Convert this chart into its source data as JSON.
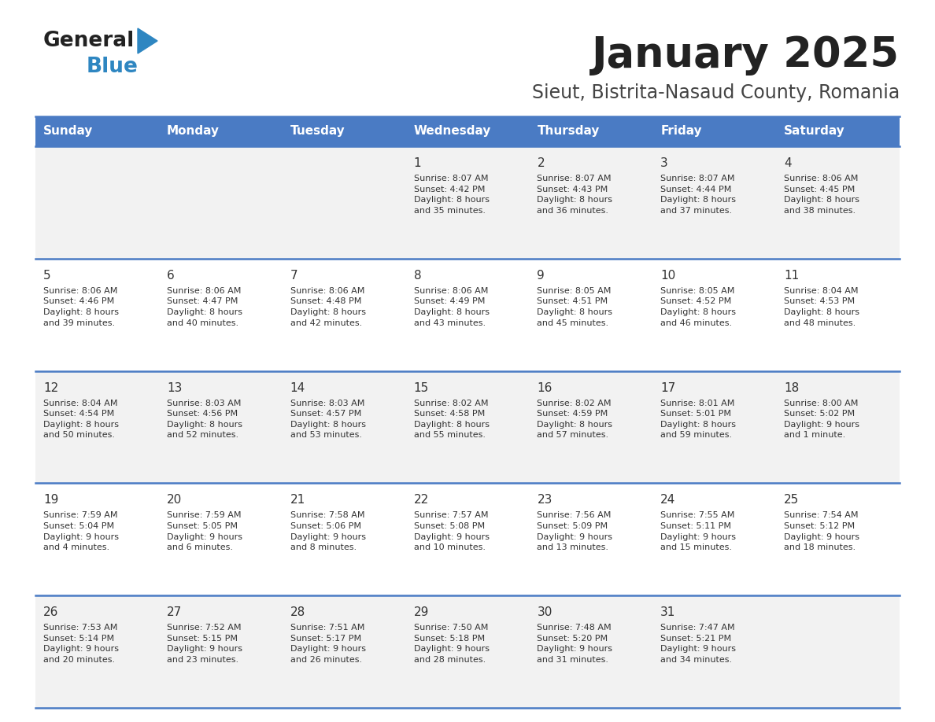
{
  "title": "January 2025",
  "subtitle": "Sieut, Bistrita-Nasaud County, Romania",
  "days_of_week": [
    "Sunday",
    "Monday",
    "Tuesday",
    "Wednesday",
    "Thursday",
    "Friday",
    "Saturday"
  ],
  "header_bg": "#4A7BC4",
  "header_text": "#FFFFFF",
  "row_bg_1": "#F2F2F2",
  "row_bg_2": "#FFFFFF",
  "cell_text_color": "#333333",
  "day_num_color": "#333333",
  "divider_color": "#4A7BC4",
  "title_color": "#222222",
  "subtitle_color": "#444444",
  "logo_general_color": "#222222",
  "logo_blue_color": "#2E86C1",
  "weeks": [
    {
      "days": [
        {
          "date": null,
          "info": null
        },
        {
          "date": null,
          "info": null
        },
        {
          "date": null,
          "info": null
        },
        {
          "date": "1",
          "info": "Sunrise: 8:07 AM\nSunset: 4:42 PM\nDaylight: 8 hours\nand 35 minutes."
        },
        {
          "date": "2",
          "info": "Sunrise: 8:07 AM\nSunset: 4:43 PM\nDaylight: 8 hours\nand 36 minutes."
        },
        {
          "date": "3",
          "info": "Sunrise: 8:07 AM\nSunset: 4:44 PM\nDaylight: 8 hours\nand 37 minutes."
        },
        {
          "date": "4",
          "info": "Sunrise: 8:06 AM\nSunset: 4:45 PM\nDaylight: 8 hours\nand 38 minutes."
        }
      ]
    },
    {
      "days": [
        {
          "date": "5",
          "info": "Sunrise: 8:06 AM\nSunset: 4:46 PM\nDaylight: 8 hours\nand 39 minutes."
        },
        {
          "date": "6",
          "info": "Sunrise: 8:06 AM\nSunset: 4:47 PM\nDaylight: 8 hours\nand 40 minutes."
        },
        {
          "date": "7",
          "info": "Sunrise: 8:06 AM\nSunset: 4:48 PM\nDaylight: 8 hours\nand 42 minutes."
        },
        {
          "date": "8",
          "info": "Sunrise: 8:06 AM\nSunset: 4:49 PM\nDaylight: 8 hours\nand 43 minutes."
        },
        {
          "date": "9",
          "info": "Sunrise: 8:05 AM\nSunset: 4:51 PM\nDaylight: 8 hours\nand 45 minutes."
        },
        {
          "date": "10",
          "info": "Sunrise: 8:05 AM\nSunset: 4:52 PM\nDaylight: 8 hours\nand 46 minutes."
        },
        {
          "date": "11",
          "info": "Sunrise: 8:04 AM\nSunset: 4:53 PM\nDaylight: 8 hours\nand 48 minutes."
        }
      ]
    },
    {
      "days": [
        {
          "date": "12",
          "info": "Sunrise: 8:04 AM\nSunset: 4:54 PM\nDaylight: 8 hours\nand 50 minutes."
        },
        {
          "date": "13",
          "info": "Sunrise: 8:03 AM\nSunset: 4:56 PM\nDaylight: 8 hours\nand 52 minutes."
        },
        {
          "date": "14",
          "info": "Sunrise: 8:03 AM\nSunset: 4:57 PM\nDaylight: 8 hours\nand 53 minutes."
        },
        {
          "date": "15",
          "info": "Sunrise: 8:02 AM\nSunset: 4:58 PM\nDaylight: 8 hours\nand 55 minutes."
        },
        {
          "date": "16",
          "info": "Sunrise: 8:02 AM\nSunset: 4:59 PM\nDaylight: 8 hours\nand 57 minutes."
        },
        {
          "date": "17",
          "info": "Sunrise: 8:01 AM\nSunset: 5:01 PM\nDaylight: 8 hours\nand 59 minutes."
        },
        {
          "date": "18",
          "info": "Sunrise: 8:00 AM\nSunset: 5:02 PM\nDaylight: 9 hours\nand 1 minute."
        }
      ]
    },
    {
      "days": [
        {
          "date": "19",
          "info": "Sunrise: 7:59 AM\nSunset: 5:04 PM\nDaylight: 9 hours\nand 4 minutes."
        },
        {
          "date": "20",
          "info": "Sunrise: 7:59 AM\nSunset: 5:05 PM\nDaylight: 9 hours\nand 6 minutes."
        },
        {
          "date": "21",
          "info": "Sunrise: 7:58 AM\nSunset: 5:06 PM\nDaylight: 9 hours\nand 8 minutes."
        },
        {
          "date": "22",
          "info": "Sunrise: 7:57 AM\nSunset: 5:08 PM\nDaylight: 9 hours\nand 10 minutes."
        },
        {
          "date": "23",
          "info": "Sunrise: 7:56 AM\nSunset: 5:09 PM\nDaylight: 9 hours\nand 13 minutes."
        },
        {
          "date": "24",
          "info": "Sunrise: 7:55 AM\nSunset: 5:11 PM\nDaylight: 9 hours\nand 15 minutes."
        },
        {
          "date": "25",
          "info": "Sunrise: 7:54 AM\nSunset: 5:12 PM\nDaylight: 9 hours\nand 18 minutes."
        }
      ]
    },
    {
      "days": [
        {
          "date": "26",
          "info": "Sunrise: 7:53 AM\nSunset: 5:14 PM\nDaylight: 9 hours\nand 20 minutes."
        },
        {
          "date": "27",
          "info": "Sunrise: 7:52 AM\nSunset: 5:15 PM\nDaylight: 9 hours\nand 23 minutes."
        },
        {
          "date": "28",
          "info": "Sunrise: 7:51 AM\nSunset: 5:17 PM\nDaylight: 9 hours\nand 26 minutes."
        },
        {
          "date": "29",
          "info": "Sunrise: 7:50 AM\nSunset: 5:18 PM\nDaylight: 9 hours\nand 28 minutes."
        },
        {
          "date": "30",
          "info": "Sunrise: 7:48 AM\nSunset: 5:20 PM\nDaylight: 9 hours\nand 31 minutes."
        },
        {
          "date": "31",
          "info": "Sunrise: 7:47 AM\nSunset: 5:21 PM\nDaylight: 9 hours\nand 34 minutes."
        },
        {
          "date": null,
          "info": null
        }
      ]
    }
  ]
}
